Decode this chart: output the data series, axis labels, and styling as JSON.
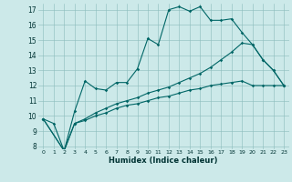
{
  "xlabel": "Humidex (Indice chaleur)",
  "background_color": "#cce9e9",
  "grid_color": "#8bbcbc",
  "line_color": "#006666",
  "xlim": [
    -0.5,
    23.5
  ],
  "ylim": [
    7.8,
    17.4
  ],
  "yticks": [
    8,
    9,
    10,
    11,
    12,
    13,
    14,
    15,
    16,
    17
  ],
  "xticks": [
    0,
    1,
    2,
    3,
    4,
    5,
    6,
    7,
    8,
    9,
    10,
    11,
    12,
    13,
    14,
    15,
    16,
    17,
    18,
    19,
    20,
    21,
    22,
    23
  ],
  "line1_x": [
    0,
    1,
    2,
    3,
    4,
    5,
    6,
    7,
    8,
    9,
    10,
    11,
    12,
    13,
    14,
    15,
    16,
    17,
    18,
    19,
    20,
    21,
    22,
    23
  ],
  "line1_y": [
    9.8,
    9.5,
    7.7,
    10.3,
    12.3,
    11.8,
    11.7,
    12.2,
    12.2,
    13.1,
    15.1,
    14.7,
    17.0,
    17.2,
    16.9,
    17.2,
    16.3,
    16.3,
    16.4,
    15.5,
    14.7,
    13.7,
    13.0,
    12.0
  ],
  "line2_x": [
    0,
    2,
    3,
    4,
    5,
    6,
    7,
    8,
    9,
    10,
    11,
    12,
    13,
    14,
    15,
    16,
    17,
    18,
    19,
    20,
    21,
    22,
    23
  ],
  "line2_y": [
    9.8,
    7.7,
    9.5,
    9.8,
    10.2,
    10.5,
    10.8,
    11.0,
    11.2,
    11.5,
    11.7,
    11.9,
    12.2,
    12.5,
    12.8,
    13.2,
    13.7,
    14.2,
    14.8,
    14.7,
    13.7,
    13.0,
    12.0
  ],
  "line3_x": [
    0,
    2,
    3,
    4,
    5,
    6,
    7,
    8,
    9,
    10,
    11,
    12,
    13,
    14,
    15,
    16,
    17,
    18,
    19,
    20,
    21,
    22,
    23
  ],
  "line3_y": [
    9.8,
    7.7,
    9.5,
    9.7,
    10.0,
    10.2,
    10.5,
    10.7,
    10.8,
    11.0,
    11.2,
    11.3,
    11.5,
    11.7,
    11.8,
    12.0,
    12.1,
    12.2,
    12.3,
    12.0,
    12.0,
    12.0,
    12.0
  ]
}
